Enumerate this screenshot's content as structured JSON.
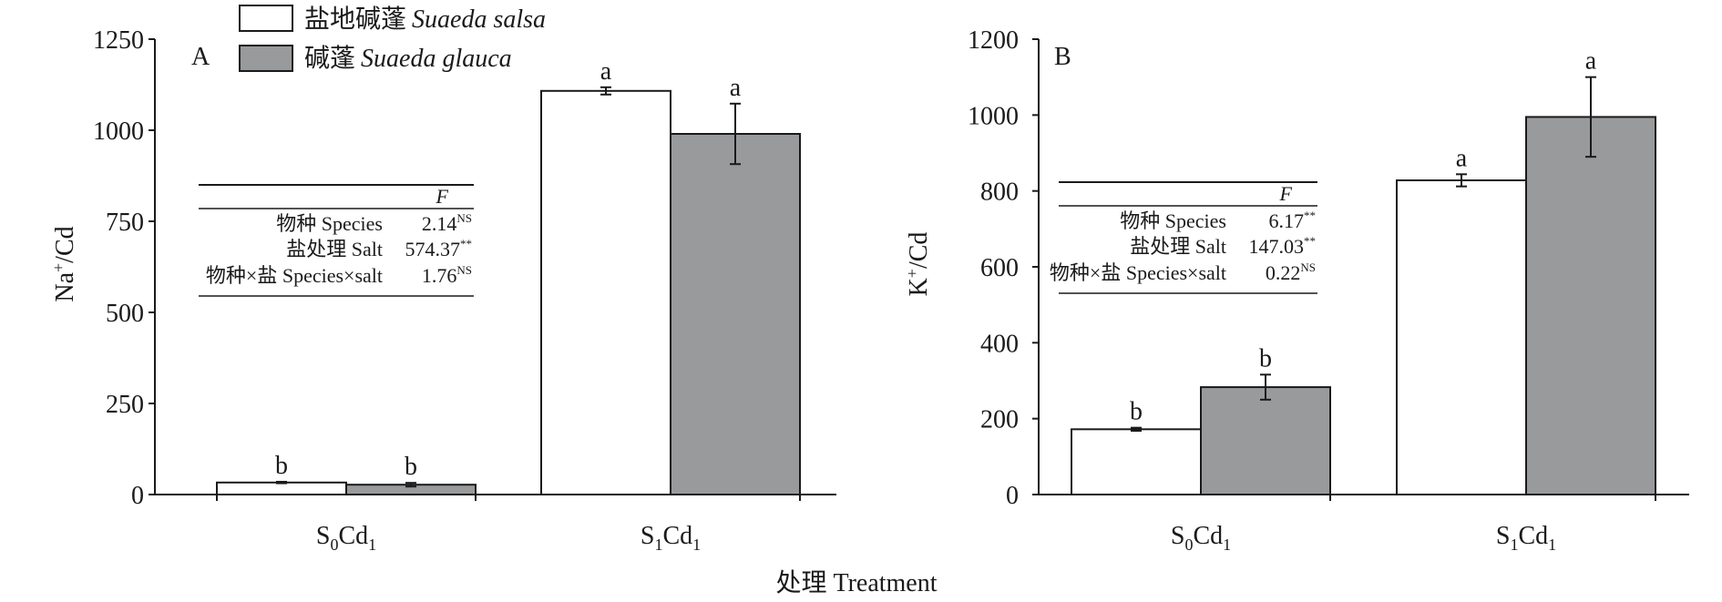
{
  "x_title": "处理 Treatment",
  "legend": [
    {
      "swatch": "white",
      "zh": "盐地碱蓬",
      "latin": "Suaeda salsa"
    },
    {
      "swatch": "gray",
      "zh": "碱蓬",
      "latin": "Suaeda glauca"
    }
  ],
  "colors": {
    "white_bar": "#ffffff",
    "gray_bar": "#999a9c",
    "stroke": "#1a1a1a"
  },
  "chart_data": [
    {
      "type": "bar",
      "panel": "A",
      "ylabel_main": "Na",
      "ylabel_sup": "+",
      "ylabel_rest": "/Cd",
      "ylim": [
        0,
        1250
      ],
      "yticks": [
        0,
        250,
        500,
        750,
        1000,
        1250
      ],
      "categories": [
        {
          "base": "S",
          "s1": "0",
          "mid": "Cd",
          "s2": "1"
        },
        {
          "base": "S",
          "s1": "1",
          "mid": "Cd",
          "s2": "1"
        }
      ],
      "series": [
        {
          "name": "盐地碱蓬 Suaeda salsa",
          "swatch": "white",
          "values": [
            33,
            1108
          ],
          "errors": [
            2,
            10
          ],
          "letters": [
            "b",
            "a"
          ]
        },
        {
          "name": "碱蓬 Suaeda glauca",
          "swatch": "gray",
          "values": [
            27,
            990
          ],
          "errors": [
            5,
            83
          ],
          "letters": [
            "b",
            "a"
          ]
        }
      ],
      "anova": {
        "header": "F",
        "rows": [
          {
            "label": "物种 Species",
            "value": "2.14",
            "sig": "NS"
          },
          {
            "label": "盐处理 Salt",
            "value": "574.37",
            "sig": "**"
          },
          {
            "label": "物种×盐 Species×salt",
            "value": "1.76",
            "sig": "NS"
          }
        ]
      }
    },
    {
      "type": "bar",
      "panel": "B",
      "ylabel_main": "K",
      "ylabel_sup": "+",
      "ylabel_rest": "/Cd",
      "ylim": [
        0,
        1200
      ],
      "yticks": [
        0,
        200,
        400,
        600,
        800,
        1000,
        1200
      ],
      "categories": [
        {
          "base": "S",
          "s1": "0",
          "mid": "Cd",
          "s2": "1"
        },
        {
          "base": "S",
          "s1": "1",
          "mid": "Cd",
          "s2": "1"
        }
      ],
      "series": [
        {
          "name": "盐地碱蓬 Suaeda salsa",
          "swatch": "white",
          "values": [
            172,
            828
          ],
          "errors": [
            4,
            16
          ],
          "letters": [
            "b",
            "a"
          ]
        },
        {
          "name": "碱蓬 Suaeda glauca",
          "swatch": "gray",
          "values": [
            283,
            995
          ],
          "errors": [
            33,
            105
          ],
          "letters": [
            "b",
            "a"
          ]
        }
      ],
      "anova": {
        "header": "F",
        "rows": [
          {
            "label": "物种 Species",
            "value": "6.17",
            "sig": "**"
          },
          {
            "label": "盐处理 Salt",
            "value": "147.03",
            "sig": "**"
          },
          {
            "label": "物种×盐 Species×salt",
            "value": "0.22",
            "sig": "NS"
          }
        ]
      }
    }
  ]
}
